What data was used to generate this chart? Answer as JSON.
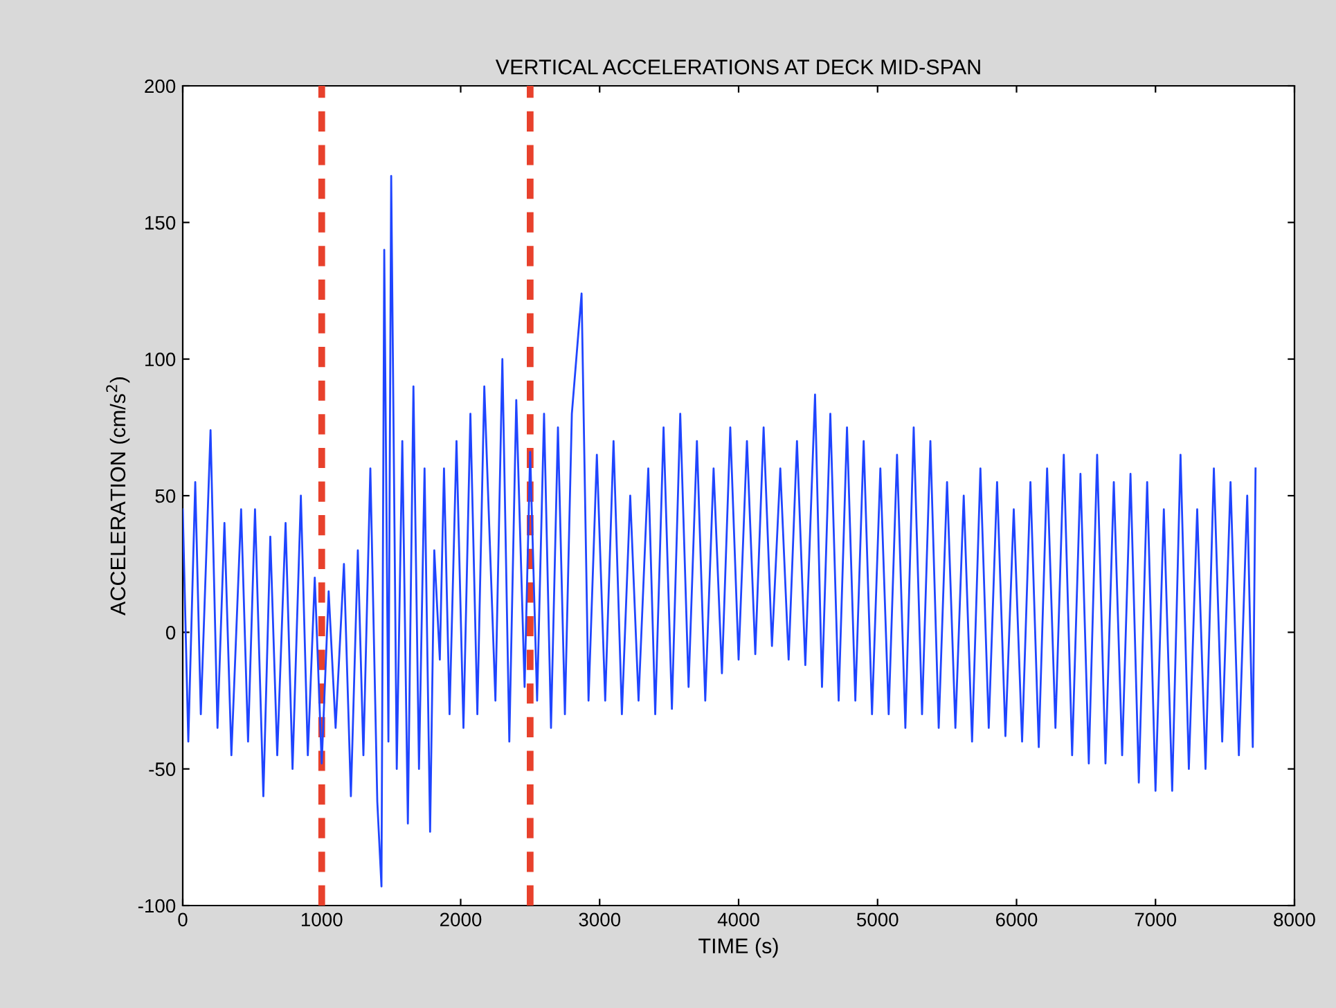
{
  "chart_data": {
    "type": "line",
    "title": "VERTICAL ACCELERATIONS AT DECK MID-SPAN",
    "xlabel": "TIME (s)",
    "ylabel": "ACCELERATION (cm/s$^{2}$)",
    "x": [
      0,
      40,
      90,
      130,
      200,
      250,
      300,
      350,
      420,
      470,
      520,
      580,
      630,
      680,
      740,
      790,
      850,
      900,
      950,
      1000,
      1050,
      1100,
      1160,
      1210,
      1260,
      1300,
      1350,
      1400,
      1430,
      1450,
      1480,
      1500,
      1540,
      1580,
      1620,
      1660,
      1700,
      1740,
      1780,
      1810,
      1850,
      1880,
      1920,
      1970,
      2020,
      2070,
      2120,
      2170,
      2250,
      2300,
      2350,
      2400,
      2460,
      2500,
      2550,
      2600,
      2650,
      2700,
      2750,
      2800,
      2870,
      2920,
      2980,
      3040,
      3100,
      3160,
      3220,
      3280,
      3350,
      3400,
      3460,
      3520,
      3580,
      3640,
      3700,
      3760,
      3820,
      3880,
      3940,
      4000,
      4060,
      4120,
      4180,
      4240,
      4300,
      4360,
      4420,
      4480,
      4550,
      4600,
      4660,
      4720,
      4780,
      4840,
      4900,
      4960,
      5020,
      5080,
      5140,
      5200,
      5260,
      5320,
      5380,
      5440,
      5500,
      5560,
      5620,
      5680,
      5740,
      5800,
      5860,
      5920,
      5980,
      6040,
      6100,
      6160,
      6220,
      6280,
      6340,
      6400,
      6460,
      6520,
      6580,
      6640,
      6700,
      6760,
      6820,
      6880,
      6940,
      7000,
      7060,
      7120,
      7180,
      7240,
      7300,
      7360,
      7420,
      7480,
      7540,
      7600,
      7660,
      7700,
      7720
    ],
    "series": [
      {
        "color": "#1f45ff",
        "values": [
          45,
          -40,
          55,
          -30,
          74,
          -35,
          40,
          -45,
          45,
          -40,
          45,
          -60,
          35,
          -45,
          40,
          -50,
          50,
          -45,
          20,
          -48,
          15,
          -35,
          25,
          -60,
          30,
          -45,
          60,
          -62,
          -93,
          140,
          -40,
          167,
          -50,
          70,
          -70,
          90,
          -50,
          60,
          -73,
          30,
          -10,
          60,
          -30,
          70,
          -35,
          80,
          -30,
          90,
          -25,
          100,
          -40,
          85,
          -20,
          66,
          -25,
          80,
          -35,
          75,
          -30,
          80,
          124,
          -25,
          65,
          -25,
          70,
          -30,
          50,
          -25,
          60,
          -30,
          75,
          -28,
          80,
          -20,
          70,
          -25,
          60,
          -15,
          75,
          -10,
          70,
          -8,
          75,
          -5,
          60,
          -10,
          70,
          -12,
          87,
          -20,
          80,
          -25,
          75,
          -25,
          70,
          -30,
          60,
          -30,
          65,
          -35,
          75,
          -30,
          70,
          -35,
          55,
          -35,
          50,
          -40,
          60,
          -35,
          55,
          -38,
          45,
          -40,
          55,
          -42,
          60,
          -35,
          65,
          -45,
          58,
          -48,
          65,
          -48,
          55,
          -45,
          58,
          -55,
          55,
          -58,
          45,
          -58,
          65,
          -50,
          45,
          -50,
          60,
          -40,
          55,
          -45,
          50,
          -42,
          60
        ]
      }
    ],
    "xlim": [
      0,
      8000
    ],
    "ylim": [
      -100,
      200
    ],
    "xticks": [
      0,
      1000,
      2000,
      3000,
      4000,
      5000,
      6000,
      7000,
      8000
    ],
    "yticks": [
      -100,
      -50,
      0,
      50,
      100,
      150,
      200
    ],
    "ref_lines": [
      {
        "axis": "x",
        "value": 1000,
        "color": "#e8412c",
        "line_style": "dashed"
      },
      {
        "axis": "x",
        "value": 2500,
        "color": "#e8412c",
        "line_style": "dashed"
      }
    ],
    "grid": false
  }
}
